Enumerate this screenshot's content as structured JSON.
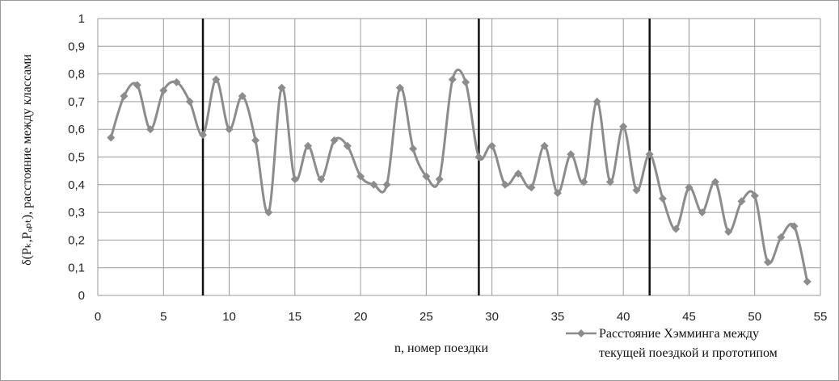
{
  "chart_data": {
    "type": "line",
    "title": "",
    "xlabel": "n, номер поездки",
    "ylabel": "δ(Pₖ,Pₒₚₜ), расстояние между классами",
    "xlim": [
      0,
      55
    ],
    "ylim": [
      0,
      1
    ],
    "x_ticks": [
      "0",
      "5",
      "10",
      "15",
      "20",
      "25",
      "30",
      "35",
      "40",
      "45",
      "50",
      "55"
    ],
    "y_ticks": [
      "0",
      "0,1",
      "0,2",
      "0,3",
      "0,4",
      "0,5",
      "0,6",
      "0,7",
      "0,8",
      "0,9",
      "1"
    ],
    "grid": true,
    "legend_position": "bottom-right",
    "vertical_markers": [
      8,
      29,
      42
    ],
    "series": [
      {
        "name": "Расстояние Хэмминга между текущей поездкой и прототипом",
        "legend_lines": [
          "Расстояние Хэмминга между",
          "текущей поездкой и прототипом"
        ],
        "color": "#8c8c8c",
        "marker": "diamond",
        "x": [
          1,
          2,
          3,
          4,
          5,
          6,
          7,
          8,
          9,
          10,
          11,
          12,
          13,
          14,
          15,
          16,
          17,
          18,
          19,
          20,
          21,
          22,
          23,
          24,
          25,
          26,
          27,
          28,
          29,
          30,
          31,
          32,
          33,
          34,
          35,
          36,
          37,
          38,
          39,
          40,
          41,
          42,
          43,
          44,
          45,
          46,
          47,
          48,
          49,
          50,
          51,
          52,
          53,
          54
        ],
        "values": [
          0.57,
          0.72,
          0.76,
          0.6,
          0.74,
          0.77,
          0.7,
          0.58,
          0.78,
          0.6,
          0.72,
          0.56,
          0.3,
          0.75,
          0.42,
          0.54,
          0.42,
          0.56,
          0.54,
          0.43,
          0.4,
          0.4,
          0.75,
          0.53,
          0.43,
          0.42,
          0.78,
          0.77,
          0.5,
          0.54,
          0.4,
          0.44,
          0.39,
          0.54,
          0.37,
          0.51,
          0.41,
          0.7,
          0.41,
          0.61,
          0.38,
          0.51,
          0.35,
          0.24,
          0.39,
          0.3,
          0.41,
          0.23,
          0.34,
          0.36,
          0.12,
          0.21,
          0.25,
          0.05
        ]
      }
    ]
  }
}
